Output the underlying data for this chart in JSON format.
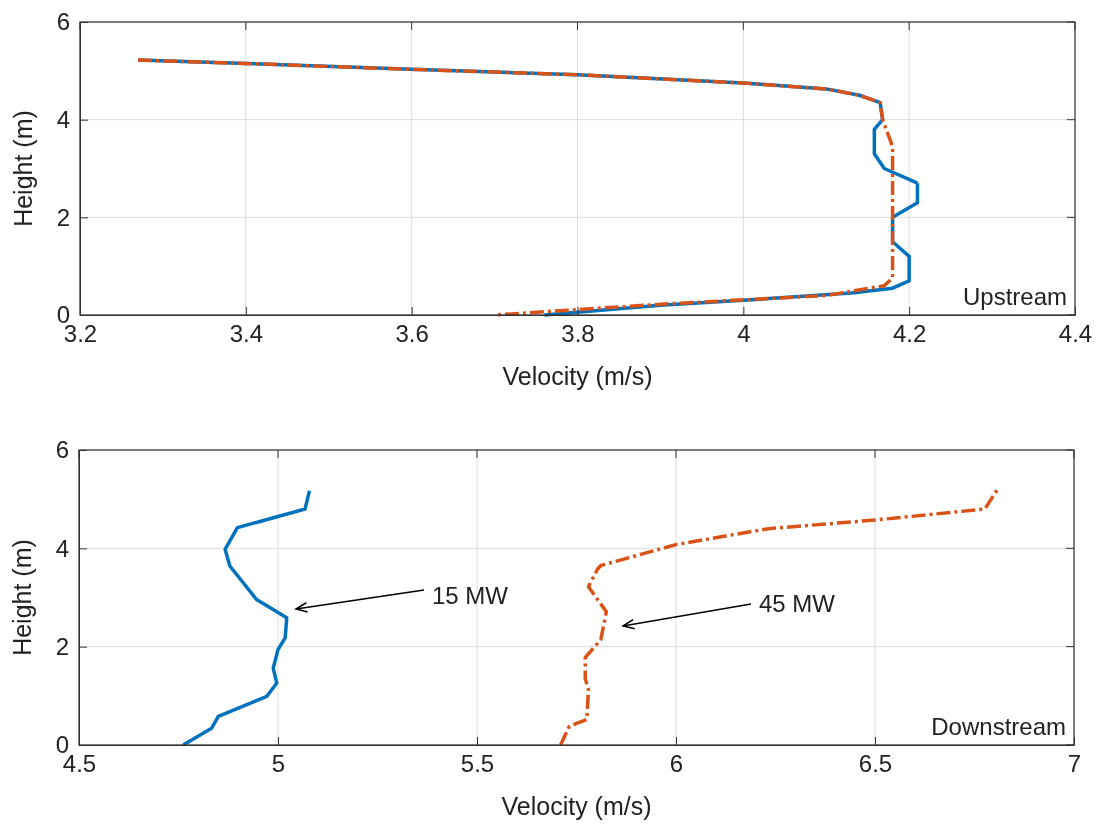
{
  "chart_data": [
    {
      "type": "line",
      "xlabel": "Velocity (m/s)",
      "ylabel": "Height (m)",
      "xlim": [
        3.2,
        4.4
      ],
      "ylim": [
        0,
        6
      ],
      "xticks": [
        3.2,
        3.4,
        3.6,
        3.8,
        4,
        4.2,
        4.4
      ],
      "yticks": [
        0,
        2,
        4,
        6
      ],
      "grid": true,
      "annotations": [
        "Upstream"
      ],
      "series": [
        {
          "color": "#0072bd",
          "line_style": "solid",
          "x": [
            4.21,
            4.21,
            4.18,
            4.18,
            4.2,
            4.2,
            4.18,
            4.13,
            4.0,
            3.9,
            3.76
          ],
          "values": [
            2.7,
            2.3,
            2.0,
            1.5,
            1.2,
            0.7,
            0.55,
            0.45,
            0.3,
            0.2,
            0.0
          ]
        },
        {
          "color": "#0072bd",
          "line_style": "solid",
          "x": [
            3.27,
            3.4,
            3.6,
            3.8,
            4.0,
            4.1,
            4.14,
            4.165,
            4.168,
            4.158,
            4.158,
            4.17,
            4.21
          ],
          "values": [
            5.22,
            5.15,
            5.03,
            4.92,
            4.75,
            4.63,
            4.5,
            4.35,
            4.0,
            3.8,
            3.3,
            3.0,
            2.7
          ]
        },
        {
          "color": "#d95319",
          "line_style": "dashed",
          "x": [
            3.27,
            3.4,
            3.6,
            3.8,
            4.0,
            4.1,
            4.14,
            4.165,
            4.168,
            4.18,
            4.18,
            4.17,
            4.1,
            3.9,
            3.7
          ],
          "values": [
            5.22,
            5.15,
            5.03,
            4.92,
            4.75,
            4.63,
            4.5,
            4.35,
            4.0,
            3.45,
            0.76,
            0.6,
            0.4,
            0.22,
            0.0
          ]
        }
      ]
    },
    {
      "type": "line",
      "xlabel": "Velocity (m/s)",
      "ylabel": "Height (m)",
      "xlim": [
        4.5,
        7
      ],
      "ylim": [
        0,
        6
      ],
      "xticks": [
        4.5,
        5,
        5.5,
        6,
        6.5,
        7
      ],
      "yticks": [
        0,
        2,
        4,
        6
      ],
      "grid": true,
      "annotations": [
        "15 MW",
        "45 MW",
        "Downstream"
      ],
      "series": [
        {
          "color": "#0072bd",
          "line_style": "solid",
          "x": [
            4.762,
            4.833,
            4.85,
            4.972,
            4.997,
            4.988,
            5.0,
            5.018,
            5.022,
            4.946,
            4.879,
            4.867,
            4.898,
            5.068,
            5.079
          ],
          "values": [
            0,
            0.34,
            0.58,
            0.99,
            1.26,
            1.56,
            1.94,
            2.18,
            2.59,
            2.96,
            3.64,
            3.98,
            4.42,
            4.8,
            5.17
          ]
        },
        {
          "color": "#d95319",
          "line_style": "dashed",
          "x": [
            5.71,
            5.732,
            5.776,
            5.78,
            5.772,
            5.772,
            5.811,
            5.825,
            5.78,
            5.803,
            5.811,
            6.002,
            6.232,
            6.506,
            6.776,
            6.807
          ],
          "values": [
            0,
            0.38,
            0.52,
            1.13,
            1.35,
            1.78,
            2.14,
            2.71,
            3.22,
            3.58,
            3.65,
            4.08,
            4.4,
            4.58,
            4.8,
            5.19
          ]
        }
      ]
    }
  ]
}
